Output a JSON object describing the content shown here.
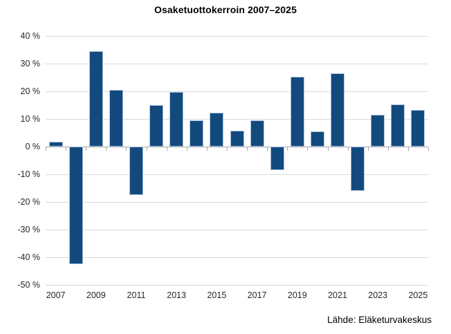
{
  "title": "Osaketuottokerroin 2007–2025",
  "source": "Lähde: Eläketurvakeskus",
  "colors": {
    "bar_fill": "#134A7E",
    "bar_border": "#A9C0DC",
    "gridline": "#D9D9D9",
    "axis_line": "#A6A6A6",
    "text": "#262626",
    "background": "#FFFFFF"
  },
  "chart_data": {
    "type": "bar",
    "title": "Osaketuottokerroin 2007–2025",
    "categories": [
      "2007",
      "2008",
      "2009",
      "2010",
      "2011",
      "2012",
      "2013",
      "2014",
      "2015",
      "2016",
      "2017",
      "2018",
      "2019",
      "2020",
      "2021",
      "2022",
      "2023",
      "2024",
      "2025"
    ],
    "values": [
      1.8,
      -42.4,
      34.5,
      20.6,
      -17.5,
      15.0,
      19.8,
      9.5,
      12.2,
      5.7,
      9.4,
      -8.4,
      25.2,
      5.4,
      26.6,
      -15.9,
      11.4,
      15.3,
      13.3
    ],
    "xlabel": "",
    "ylabel": "",
    "ylim": [
      -50,
      40
    ],
    "ytick_step": 10,
    "yticklabels": [
      "40 %",
      "30 %",
      "20 %",
      "10 %",
      "0 %",
      "-10 %",
      "-20 %",
      "-30 %",
      "-40 %",
      "-50 %"
    ],
    "xticklabels": [
      "2007",
      "2009",
      "2011",
      "2013",
      "2015",
      "2017",
      "2019",
      "2021",
      "2023",
      "2025"
    ],
    "grid": true,
    "legend": false,
    "source": "Lähde: Eläketurvakeskus"
  }
}
